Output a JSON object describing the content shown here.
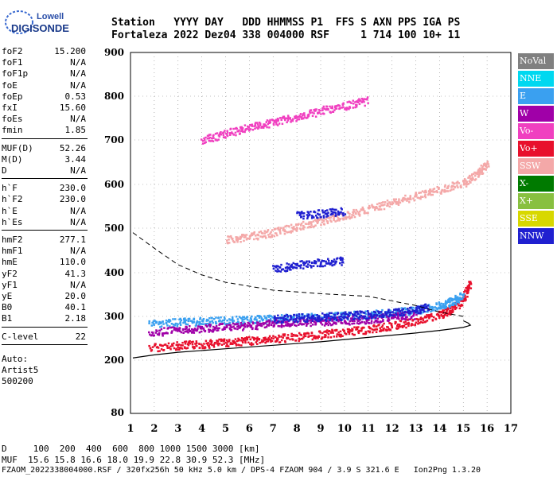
{
  "logo": {
    "top_text": "Lowell",
    "bottom_text": "DIGISONDE"
  },
  "header": {
    "line1": "Station   YYYY DAY   DDD HHMMSS P1  FFS S AXN PPS IGA PS",
    "line2": "Fortaleza 2022 Dez04 338 004000 RSF     1 714 100 10+ 11"
  },
  "side_params": [
    {
      "label": "foF2",
      "value": "15.200"
    },
    {
      "label": "foF1",
      "value": "N/A"
    },
    {
      "label": "foF1p",
      "value": "N/A"
    },
    {
      "label": "foE",
      "value": "N/A"
    },
    {
      "label": "foEp",
      "value": "0.53"
    },
    {
      "label": "fxI",
      "value": "15.60"
    },
    {
      "label": "foEs",
      "value": "N/A"
    },
    {
      "label": "fmin",
      "value": "1.85"
    },
    {
      "label": "MUF(D)",
      "value": "52.26"
    },
    {
      "label": "M(D)",
      "value": "3.44"
    },
    {
      "label": "D",
      "value": "N/A"
    },
    {
      "label": "h`F",
      "value": "230.0"
    },
    {
      "label": "h`F2",
      "value": "230.0"
    },
    {
      "label": "h`E",
      "value": "N/A"
    },
    {
      "label": "h`Es",
      "value": "N/A"
    },
    {
      "label": "hmF2",
      "value": "277.1"
    },
    {
      "label": "hmF1",
      "value": "N/A"
    },
    {
      "label": "hmE",
      "value": "110.0"
    },
    {
      "label": "yF2",
      "value": "41.3"
    },
    {
      "label": "yF1",
      "value": "N/A"
    },
    {
      "label": "yE",
      "value": "20.0"
    },
    {
      "label": "B0",
      "value": "40.1"
    },
    {
      "label": "B1",
      "value": "2.18"
    },
    {
      "label": "C-level",
      "value": "22"
    }
  ],
  "auto": {
    "line1": "Auto:",
    "line2": "Artist5",
    "line3": "500200"
  },
  "legend": [
    {
      "label": "NoVal",
      "color": "#808080"
    },
    {
      "label": "NNE",
      "color": "#00d8f0"
    },
    {
      "label": "E",
      "color": "#3aa0f0"
    },
    {
      "label": "W",
      "color": "#a000a8"
    },
    {
      "label": "Vo-",
      "color": "#f040c0"
    },
    {
      "label": "Vo+",
      "color": "#e8102c"
    },
    {
      "label": "SSW",
      "color": "#f4a8a8"
    },
    {
      "label": "X-",
      "color": "#007a00"
    },
    {
      "label": "X+",
      "color": "#88c040"
    },
    {
      "label": "SSE",
      "color": "#d8d800"
    },
    {
      "label": "NNW",
      "color": "#2020d0"
    }
  ],
  "bottom": {
    "line1": "D     100  200  400  600  800 1000 1500 3000 [km]",
    "line2": "MUF  15.6 15.8 16.6 18.0 19.9 22.8 30.9 52.3 [MHz]",
    "line3": "FZAOM_2022338004000.RSF / 320fx256h 50 kHz 5.0 km / DPS-4 FZAOM 904 / 3.9 S 321.6 E   Ion2Png 1.3.20"
  },
  "chart_data": {
    "type": "scatter",
    "title": "",
    "xlabel": "",
    "ylabel": "",
    "xlim": [
      1,
      17
    ],
    "ylim": [
      80,
      900
    ],
    "x_ticks": [
      "1",
      "2",
      "3",
      "4",
      "5",
      "6",
      "7",
      "8",
      "9",
      "10",
      "11",
      "12",
      "13",
      "14",
      "15",
      "16",
      "17"
    ],
    "y_ticks": [
      "80",
      "200",
      "300",
      "400",
      "500",
      "600",
      "700",
      "800",
      "900"
    ],
    "y_tick_values": [
      80,
      200,
      300,
      400,
      500,
      600,
      700,
      800,
      900
    ],
    "traces": [
      {
        "name": "Vo+",
        "color": "#e8102c",
        "x": [
          1.8,
          3,
          4,
          5,
          6,
          7,
          8,
          9,
          10,
          11,
          12,
          13,
          14,
          14.5,
          15,
          15.3
        ],
        "y": [
          230,
          235,
          238,
          242,
          246,
          250,
          255,
          260,
          266,
          272,
          280,
          290,
          305,
          318,
          340,
          385
        ]
      },
      {
        "name": "E",
        "color": "#3aa0f0",
        "x": [
          1.8,
          3,
          4,
          5,
          6,
          7,
          8,
          9,
          10,
          11,
          12,
          13,
          14,
          14.5,
          15
        ],
        "y": [
          285,
          288,
          290,
          292,
          294,
          296,
          298,
          300,
          303,
          306,
          310,
          316,
          326,
          335,
          350
        ]
      },
      {
        "name": "W",
        "color": "#a000a8",
        "x": [
          1.8,
          3,
          4,
          5,
          6,
          7,
          8,
          9,
          10,
          11,
          12,
          13
        ],
        "y": [
          265,
          270,
          275,
          278,
          280,
          285,
          288,
          290,
          292,
          295,
          300,
          305
        ]
      },
      {
        "name": "NNW",
        "color": "#2020d0",
        "x": [
          7,
          8,
          9,
          10,
          11,
          12,
          13,
          13.5
        ],
        "y": [
          295,
          298,
          300,
          303,
          306,
          310,
          316,
          322
        ]
      },
      {
        "name": "Vo-",
        "color": "#f040c0",
        "x": [
          4,
          5,
          6,
          7,
          8,
          9,
          10,
          11
        ],
        "y": [
          702,
          716,
          730,
          742,
          755,
          768,
          780,
          792
        ]
      },
      {
        "name": "SSW",
        "color": "#f4a8a8",
        "x": [
          5,
          6,
          7,
          8,
          9,
          10,
          11,
          12,
          13,
          14,
          15,
          15.6,
          16
        ],
        "y": [
          475,
          482,
          492,
          505,
          518,
          530,
          545,
          560,
          575,
          590,
          605,
          625,
          650
        ]
      },
      {
        "name": "NNW-2",
        "color": "#2020d0",
        "x": [
          7,
          8,
          9,
          10
        ],
        "y": [
          410,
          418,
          425,
          428
        ]
      },
      {
        "name": "NNW-3",
        "color": "#2020d0",
        "x": [
          8,
          9,
          10
        ],
        "y": [
          530,
          535,
          540
        ]
      }
    ],
    "profile_curve": {
      "x": [
        1.1,
        2,
        3,
        5,
        7,
        9,
        11,
        13,
        14,
        14.6,
        15,
        15.2,
        15.3,
        15.2,
        15
      ],
      "y": [
        205,
        212,
        218,
        226,
        234,
        242,
        252,
        262,
        268,
        272,
        275,
        278,
        280,
        285,
        290
      ]
    },
    "model_curve": {
      "x": [
        1.1,
        2,
        3,
        4,
        5,
        7,
        9,
        11,
        13,
        14,
        15
      ],
      "y": [
        490,
        455,
        418,
        395,
        378,
        360,
        352,
        346,
        325,
        310,
        300
      ]
    },
    "grid": true
  }
}
